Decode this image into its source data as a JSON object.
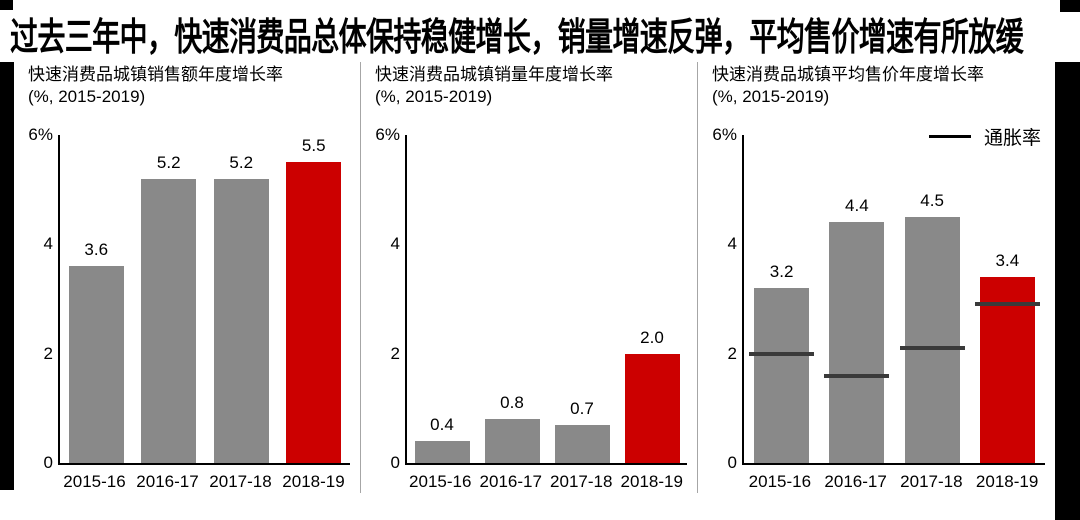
{
  "page_title": "过去三年中，快速消费品总体保持稳健增长，销量增速反弹，平均售价增速有所放缓",
  "colors": {
    "bar": "#898989",
    "highlight_bar": "#cc0000",
    "inflation_marker": "#3a3a3a",
    "axis": "#000000",
    "divider": "#a6a6a6",
    "deco": "#000000"
  },
  "chart_data": [
    {
      "type": "bar",
      "title": "快速消费品城镇销售额年度增长率",
      "subtitle": "(%, 2015-2019)",
      "categories": [
        "2015-16",
        "2016-17",
        "2017-18",
        "2018-19"
      ],
      "values": [
        3.6,
        5.2,
        5.2,
        5.5
      ],
      "labels": [
        "3.6",
        "5.2",
        "5.2",
        "5.5"
      ],
      "highlight_index": 3,
      "ylim": [
        0,
        6
      ],
      "grid": false,
      "y_ticks": [
        {
          "label": "6%",
          "value": 6
        },
        {
          "label": "4",
          "value": 4
        },
        {
          "label": "2",
          "value": 2
        },
        {
          "label": "0",
          "value": 0
        }
      ]
    },
    {
      "type": "bar",
      "title": "快速消费品城镇销量年度增长率",
      "subtitle": "(%, 2015-2019)",
      "categories": [
        "2015-16",
        "2016-17",
        "2017-18",
        "2018-19"
      ],
      "values": [
        0.4,
        0.8,
        0.7,
        2.0
      ],
      "labels": [
        "0.4",
        "0.8",
        "0.7",
        "2.0"
      ],
      "highlight_index": 3,
      "ylim": [
        0,
        6
      ],
      "grid": false,
      "y_ticks": [
        {
          "label": "6%",
          "value": 6
        },
        {
          "label": "4",
          "value": 4
        },
        {
          "label": "2",
          "value": 2
        },
        {
          "label": "0",
          "value": 0
        }
      ]
    },
    {
      "type": "bar",
      "title": "快速消费品城镇平均售价年度增长率",
      "subtitle": "(%, 2015-2019)",
      "categories": [
        "2015-16",
        "2016-17",
        "2017-18",
        "2018-19"
      ],
      "values": [
        3.2,
        4.4,
        4.5,
        3.4
      ],
      "labels": [
        "3.2",
        "4.4",
        "4.5",
        "3.4"
      ],
      "highlight_index": 3,
      "ylim": [
        0,
        6
      ],
      "grid": false,
      "legend": "通胀率",
      "legend_position": "top-right",
      "series": [
        {
          "name": "通胀率",
          "type": "marker-line",
          "values": [
            2.0,
            1.6,
            2.1,
            2.9
          ]
        }
      ],
      "y_ticks": [
        {
          "label": "6%",
          "value": 6
        },
        {
          "label": "4",
          "value": 4
        },
        {
          "label": "2",
          "value": 2
        },
        {
          "label": "0",
          "value": 0
        }
      ]
    }
  ]
}
